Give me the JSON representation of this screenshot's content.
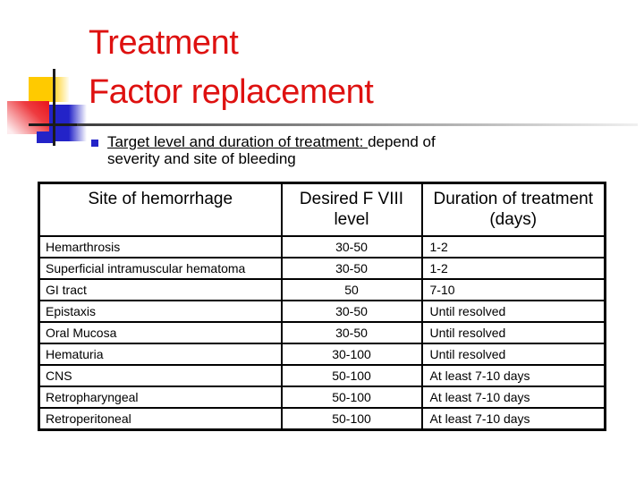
{
  "slide": {
    "title_line1": "Treatment",
    "title_line2": "Factor replacement",
    "colors": {
      "title_red": "#de1110",
      "accent_blue": "#2323c8",
      "accent_yellow": "#ffca00",
      "accent_pink_red": "#e9131b"
    },
    "bullet": {
      "underlined": "Target level and duration of treatment: ",
      "rest_line1": "depend of",
      "line2": "severity and site of bleeding"
    }
  },
  "table": {
    "headers": [
      [
        "Site of hemorrhage",
        ""
      ],
      [
        "Desired F VIII",
        "level"
      ],
      [
        "Duration of treatment",
        "(days)"
      ]
    ],
    "rows": [
      [
        "Hemarthrosis",
        "30-50",
        "1-2"
      ],
      [
        "Superficial intramuscular hematoma",
        "30-50",
        "1-2"
      ],
      [
        "GI tract",
        "50",
        "7-10"
      ],
      [
        "Epistaxis",
        "30-50",
        "Until resolved"
      ],
      [
        "Oral Mucosa",
        "30-50",
        "Until resolved"
      ],
      [
        "Hematuria",
        "30-100",
        "Until resolved"
      ],
      [
        "CNS",
        "50-100",
        "At least 7-10 days"
      ],
      [
        "Retropharyngeal",
        "50-100",
        "At least 7-10 days"
      ],
      [
        "Retroperitoneal",
        "50-100",
        "At least 7-10 days"
      ]
    ]
  }
}
